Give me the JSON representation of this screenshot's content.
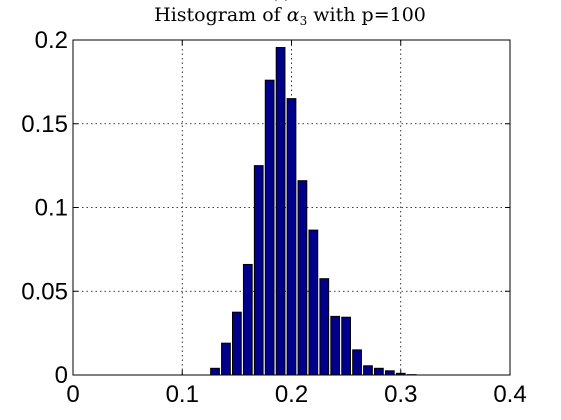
{
  "chart_data": {
    "type": "bar",
    "title_parts": {
      "prefix": "Histogram of ",
      "symbol": "α",
      "accent": "^",
      "subscript": "3",
      "suffix": " with p=100"
    },
    "x": [
      0.13,
      0.14,
      0.15,
      0.16,
      0.17,
      0.18,
      0.19,
      0.2,
      0.21,
      0.22,
      0.23,
      0.24,
      0.25,
      0.26,
      0.27,
      0.28,
      0.29,
      0.3,
      0.31
    ],
    "values": [
      0.004,
      0.019,
      0.0375,
      0.066,
      0.125,
      0.176,
      0.1955,
      0.165,
      0.116,
      0.0865,
      0.0575,
      0.035,
      0.0345,
      0.015,
      0.0055,
      0.004,
      0.0025,
      0.001,
      0.0002
    ],
    "bar_width": 0.008,
    "bar_color": "#00008b",
    "xlim": [
      0,
      0.4
    ],
    "ylim": [
      0,
      0.2
    ],
    "xticks": [
      0,
      0.1,
      0.2,
      0.3,
      0.4
    ],
    "xtick_labels": [
      "0",
      "0.1",
      "0.2",
      "0.3",
      "0.4"
    ],
    "yticks": [
      0,
      0.05,
      0.1,
      0.15,
      0.2
    ],
    "ytick_labels": [
      "0",
      "0.05",
      "0.1",
      "0.15",
      "0.2"
    ],
    "grid": true,
    "xlabel": "",
    "ylabel": ""
  }
}
